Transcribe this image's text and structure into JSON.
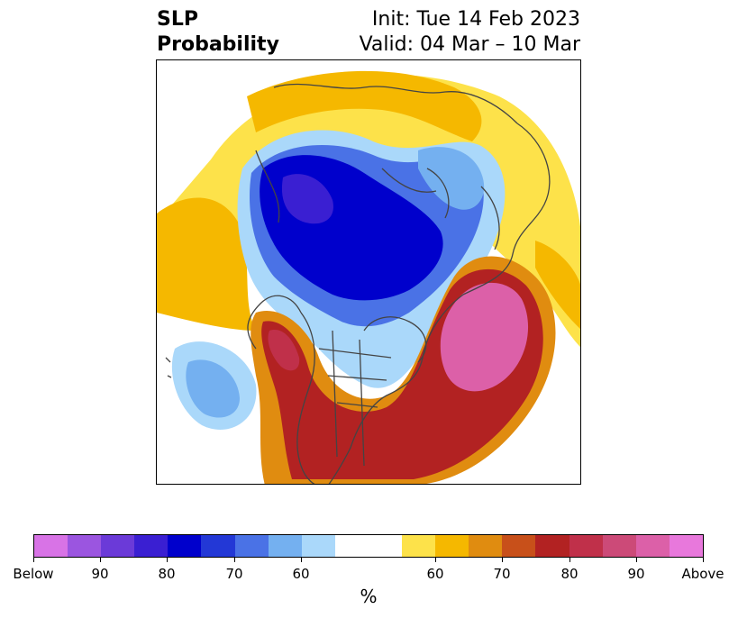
{
  "title": {
    "left_line1": "SLP",
    "left_line2": "Probability",
    "right_line1": "Init: Tue 14 Feb 2023",
    "right_line2": "Valid: 04 Mar – 10 Mar"
  },
  "colorbar": {
    "units": "%",
    "colors": [
      "#d873e6",
      "#9b55e0",
      "#6b3ad8",
      "#3a1fd2",
      "#0000cc",
      "#2338d6",
      "#4a72e6",
      "#74b0f0",
      "#aad8fa",
      "#ffffff",
      "#ffffff",
      "#fde24a",
      "#f5b800",
      "#e08c10",
      "#c8501a",
      "#b22222",
      "#c0304a",
      "#cc4a78",
      "#dc60a8",
      "#e878dc"
    ],
    "tick_labels": [
      "Below",
      "90",
      "80",
      "70",
      "60",
      "60",
      "70",
      "80",
      "90",
      "Above"
    ]
  },
  "legend_colors": {
    "strong_below": "#0000cc",
    "moderate_below": "#4a72e6",
    "weak_below": "#aad8fa",
    "weak_above": "#fde24a",
    "moderate_above": "#f5b800",
    "strong_above": "#b22222",
    "very_strong_above": "#dc60a8",
    "coastline": "#444444"
  }
}
